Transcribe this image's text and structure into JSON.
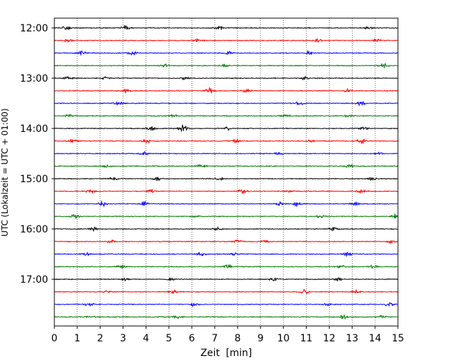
{
  "chart_data": {
    "type": "line",
    "chart_kind": "helicorder (seismogram drum plot)",
    "title": "",
    "xlabel": "Zeit  [min]",
    "ylabel": "UTC (Lokalzeit = UTC + 01:00)",
    "xlim": [
      0,
      15
    ],
    "x_ticks": [
      "0",
      "1",
      "2",
      "3",
      "4",
      "5",
      "6",
      "7",
      "8",
      "9",
      "10",
      "11",
      "12",
      "13",
      "14",
      "15"
    ],
    "y_tick_labels": [
      "12:00",
      "13:00",
      "14:00",
      "15:00",
      "16:00",
      "17:00"
    ],
    "grid": "vertical dotted lines at every minute",
    "legend": "none",
    "trace_minutes": 15,
    "trace_colors_cycle": [
      "#000000",
      "#ff0000",
      "#0000ff",
      "#007700"
    ],
    "series": [
      {
        "start": "12:00",
        "color": "#000000",
        "bursts": [
          [
            0.5,
            1.0
          ],
          [
            3.1,
            0.9
          ],
          [
            7.2,
            0.8
          ],
          [
            13.7,
            0.9
          ]
        ]
      },
      {
        "start": "12:15",
        "color": "#ff0000",
        "bursts": [
          [
            0.6,
            0.7
          ],
          [
            6.3,
            0.8
          ],
          [
            11.5,
            0.9
          ],
          [
            14.1,
            0.8
          ]
        ]
      },
      {
        "start": "12:30",
        "color": "#0000ff",
        "bursts": [
          [
            1.2,
            1.1
          ],
          [
            3.4,
            1.0
          ],
          [
            7.6,
            0.8
          ],
          [
            11.1,
            0.9
          ]
        ]
      },
      {
        "start": "12:45",
        "color": "#007700",
        "bursts": [
          [
            4.8,
            0.8
          ],
          [
            7.4,
            0.7
          ],
          [
            14.4,
            0.9
          ]
        ]
      },
      {
        "start": "13:00",
        "color": "#000000",
        "bursts": [
          [
            0.6,
            0.9
          ],
          [
            2.2,
            0.8
          ],
          [
            5.7,
            0.7
          ],
          [
            10.9,
            0.8
          ]
        ]
      },
      {
        "start": "13:15",
        "color": "#ff0000",
        "bursts": [
          [
            3.1,
            0.9
          ],
          [
            6.8,
            1.3
          ],
          [
            8.4,
            0.8
          ],
          [
            12.8,
            0.8
          ]
        ]
      },
      {
        "start": "13:30",
        "color": "#0000ff",
        "bursts": [
          [
            2.8,
            0.7
          ],
          [
            10.7,
            0.8
          ],
          [
            13.4,
            1.0
          ]
        ]
      },
      {
        "start": "13:45",
        "color": "#007700",
        "bursts": [
          [
            0.6,
            0.9
          ],
          [
            5.2,
            0.8
          ],
          [
            10.1,
            0.8
          ],
          [
            12.9,
            0.9
          ]
        ]
      },
      {
        "start": "14:00",
        "color": "#000000",
        "bursts": [
          [
            4.2,
            1.2
          ],
          [
            5.6,
            1.6
          ],
          [
            7.5,
            1.1
          ],
          [
            13.5,
            0.8
          ]
        ]
      },
      {
        "start": "14:15",
        "color": "#ff0000",
        "bursts": [
          [
            0.8,
            1.0
          ],
          [
            4.0,
            1.2
          ],
          [
            7.9,
            0.8
          ],
          [
            11.2,
            0.7
          ],
          [
            13.4,
            1.1
          ]
        ]
      },
      {
        "start": "14:30",
        "color": "#0000ff",
        "bursts": [
          [
            3.9,
            0.8
          ],
          [
            9.8,
            0.7
          ],
          [
            14.2,
            0.7
          ]
        ]
      },
      {
        "start": "14:45",
        "color": "#007700",
        "bursts": [
          [
            2.3,
            0.7
          ],
          [
            6.4,
            0.8
          ],
          [
            12.9,
            0.8
          ]
        ]
      },
      {
        "start": "15:00",
        "color": "#000000",
        "bursts": [
          [
            2.6,
            0.8
          ],
          [
            4.5,
            0.8
          ],
          [
            7.2,
            0.7
          ],
          [
            13.9,
            0.7
          ]
        ]
      },
      {
        "start": "15:15",
        "color": "#ff0000",
        "bursts": [
          [
            1.6,
            0.8
          ],
          [
            4.2,
            0.8
          ],
          [
            8.2,
            1.3
          ],
          [
            10.2,
            0.8
          ],
          [
            13.4,
            0.8
          ]
        ]
      },
      {
        "start": "15:30",
        "color": "#0000ff",
        "bursts": [
          [
            2.1,
            1.1
          ],
          [
            3.9,
            1.0
          ],
          [
            9.8,
            1.1
          ],
          [
            10.6,
            1.2
          ],
          [
            13.1,
            0.9
          ]
        ]
      },
      {
        "start": "15:45",
        "color": "#007700",
        "bursts": [
          [
            0.9,
            0.8
          ],
          [
            6.2,
            0.7
          ],
          [
            11.6,
            0.8
          ],
          [
            14.9,
            1.0
          ]
        ]
      },
      {
        "start": "16:00",
        "color": "#000000",
        "bursts": [
          [
            1.7,
            0.9
          ],
          [
            7.1,
            0.8
          ],
          [
            12.2,
            0.9
          ]
        ]
      },
      {
        "start": "16:15",
        "color": "#ff0000",
        "bursts": [
          [
            2.5,
            0.8
          ],
          [
            8.0,
            0.8
          ],
          [
            9.2,
            0.8
          ],
          [
            14.7,
            0.8
          ]
        ]
      },
      {
        "start": "16:30",
        "color": "#0000ff",
        "bursts": [
          [
            1.4,
            0.7
          ],
          [
            6.4,
            1.2
          ],
          [
            7.9,
            0.9
          ],
          [
            12.8,
            0.8
          ]
        ]
      },
      {
        "start": "16:45",
        "color": "#007700",
        "bursts": [
          [
            2.9,
            0.8
          ],
          [
            7.6,
            0.9
          ],
          [
            12.5,
            0.7
          ],
          [
            13.9,
            0.8
          ]
        ]
      },
      {
        "start": "17:00",
        "color": "#000000",
        "bursts": [
          [
            3.1,
            0.7
          ],
          [
            5.1,
            1.0
          ],
          [
            9.6,
            1.0
          ],
          [
            12.4,
            0.7
          ]
        ]
      },
      {
        "start": "17:15",
        "color": "#ff0000",
        "bursts": [
          [
            2.4,
            0.8
          ],
          [
            5.2,
            0.8
          ],
          [
            10.9,
            1.2
          ],
          [
            13.2,
            0.7
          ]
        ]
      },
      {
        "start": "17:30",
        "color": "#0000ff",
        "bursts": [
          [
            1.5,
            1.0
          ],
          [
            6.1,
            0.8
          ],
          [
            11.9,
            0.7
          ],
          [
            14.6,
            0.9
          ]
        ]
      },
      {
        "start": "17:45",
        "color": "#007700",
        "bursts": [
          [
            1.6,
            0.8
          ],
          [
            5.4,
            0.8
          ],
          [
            12.6,
            0.9
          ],
          [
            14.3,
            0.7
          ]
        ]
      }
    ]
  }
}
